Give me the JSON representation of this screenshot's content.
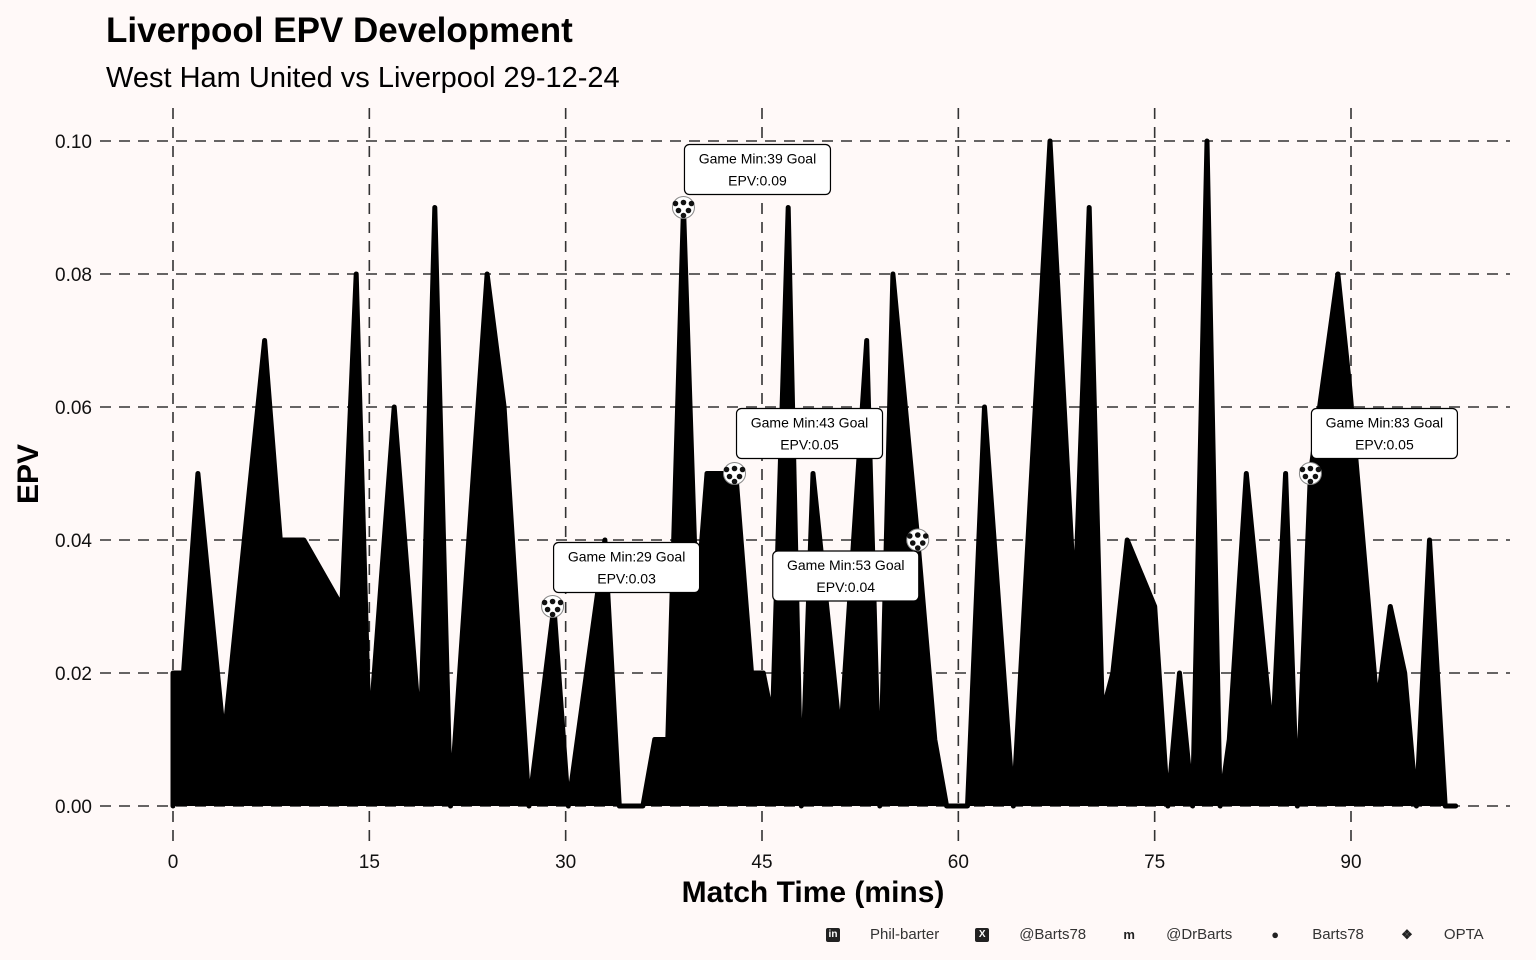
{
  "chart_data": {
    "type": "area",
    "title": "Liverpool EPV Development",
    "subtitle": "West Ham United vs Liverpool 29-12-24",
    "xlabel": "Match Time (mins)",
    "ylabel": "EPV",
    "xlim": [
      0,
      98
    ],
    "ylim": [
      0,
      0.1
    ],
    "xticks": [
      0,
      15,
      30,
      45,
      60,
      75,
      90
    ],
    "xtick_labels": [
      "0",
      "15",
      "30",
      "45",
      "60",
      "75",
      "90"
    ],
    "yticks": [
      0,
      0.02,
      0.04,
      0.06,
      0.08,
      0.1
    ],
    "ytick_labels": [
      "0.00",
      "0.02",
      "0.04",
      "0.06",
      "0.08",
      "0.10"
    ],
    "grid": true,
    "fill_color": "#000000",
    "background": "#fff9f8",
    "series": [
      {
        "name": "Liverpool EPV",
        "x": [
          0,
          0,
          0.8,
          1.9,
          3.9,
          7,
          8.2,
          10,
          12.9,
          14,
          15,
          16.9,
          18.9,
          20,
          21.2,
          24,
          25.3,
          27.2,
          29.1,
          30.2,
          30.9,
          33,
          34.1,
          35.9,
          36.8,
          37.8,
          39,
          40,
          40.8,
          43,
          44.2,
          45.1,
          45.8,
          47,
          48,
          48.9,
          51,
          53,
          54,
          55,
          56.9,
          58.2,
          59.1,
          60.7,
          62,
          64.2,
          67,
          68.9,
          70,
          71,
          71.8,
          72.9,
          75,
          76,
          76.9,
          77.9,
          79,
          80,
          80.7,
          82,
          84,
          85,
          85.9,
          86.9,
          89,
          89.9,
          92,
          93,
          94.1,
          95,
          96,
          97.2,
          98
        ],
        "y": [
          0,
          0.02,
          0.02,
          0.05,
          0.01,
          0.07,
          0.04,
          0.04,
          0.03,
          0.08,
          0.01,
          0.06,
          0.01,
          0.09,
          0,
          0.08,
          0.06,
          0,
          0.03,
          0,
          0.01,
          0.04,
          0,
          0,
          0.01,
          0.01,
          0.09,
          0.03,
          0.05,
          0.05,
          0.02,
          0.02,
          0.013,
          0.09,
          0,
          0.05,
          0.01,
          0.07,
          0,
          0.08,
          0.04,
          0.01,
          0,
          0,
          0.06,
          0,
          0.1,
          0.03,
          0.09,
          0.014,
          0.02,
          0.04,
          0.03,
          0,
          0.02,
          0,
          0.1,
          0,
          0.01,
          0.05,
          0.01,
          0.05,
          0,
          0.05,
          0.08,
          0.063,
          0.015,
          0.03,
          0.02,
          0,
          0.04,
          0,
          0
        ]
      }
    ],
    "goals": [
      {
        "x": 29,
        "y": 0.03,
        "line1": "Game Min:29 Goal",
        "line2": "EPV:0.03"
      },
      {
        "x": 39,
        "y": 0.09,
        "line1": "Game Min:39 Goal",
        "line2": "EPV:0.09"
      },
      {
        "x": 42.9,
        "y": 0.05,
        "line1": "Game Min:43 Goal",
        "line2": "EPV:0.05"
      },
      {
        "x": 56.9,
        "y": 0.04,
        "line1": "Game Min:53 Goal",
        "line2": "EPV:0.04"
      },
      {
        "x": 86.9,
        "y": 0.05,
        "line1": "Game Min:83 Goal",
        "line2": "EPV:0.05"
      }
    ]
  },
  "footer": [
    {
      "icon": "linkedin-icon",
      "text": "Phil-barter"
    },
    {
      "icon": "x-twitter-icon",
      "text": "@Barts78"
    },
    {
      "icon": "mastodon-icon",
      "text": "@DrBarts"
    },
    {
      "icon": "github-icon",
      "text": "Barts78"
    },
    {
      "icon": "dropbox-icon",
      "text": "OPTA"
    }
  ]
}
